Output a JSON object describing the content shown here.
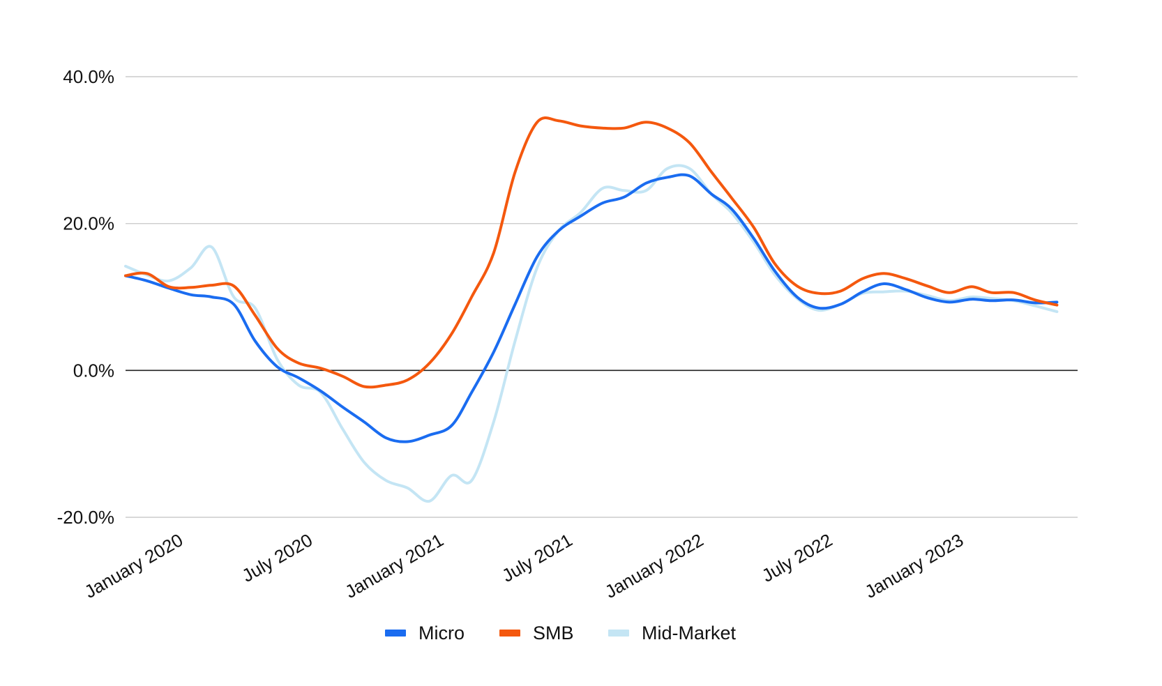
{
  "chart_data": {
    "type": "line",
    "title": "",
    "xlabel": "",
    "ylabel": "",
    "x_range": [
      "2019-11-01",
      "2023-06-30"
    ],
    "ylim": [
      -20,
      40
    ],
    "y_ticks": [
      {
        "value": -20,
        "label": "-20.0%"
      },
      {
        "value": 0,
        "label": "0.0%"
      },
      {
        "value": 20,
        "label": "20.0%"
      },
      {
        "value": 40,
        "label": "40.0%"
      }
    ],
    "x_ticks": [
      {
        "date": "2020-01-01",
        "label": "January 2020"
      },
      {
        "date": "2020-07-01",
        "label": "July 2020"
      },
      {
        "date": "2021-01-01",
        "label": "January 2021"
      },
      {
        "date": "2021-07-01",
        "label": "July 2021"
      },
      {
        "date": "2022-01-01",
        "label": "January 2022"
      },
      {
        "date": "2022-07-01",
        "label": "July 2022"
      },
      {
        "date": "2023-01-01",
        "label": "January 2023"
      }
    ],
    "grid": true,
    "legend_position": "bottom",
    "series": [
      {
        "name": "Micro",
        "color": "#1a6cf0",
        "points": [
          [
            "2019-11-01",
            12.9
          ],
          [
            "2019-12-01",
            12.2
          ],
          [
            "2020-01-01",
            11.2
          ],
          [
            "2020-02-01",
            10.3
          ],
          [
            "2020-03-01",
            10.0
          ],
          [
            "2020-04-01",
            9.0
          ],
          [
            "2020-05-01",
            4.0
          ],
          [
            "2020-06-01",
            0.5
          ],
          [
            "2020-07-01",
            -1.0
          ],
          [
            "2020-08-01",
            -2.8
          ],
          [
            "2020-09-01",
            -5.0
          ],
          [
            "2020-10-01",
            -7.0
          ],
          [
            "2020-11-01",
            -9.2
          ],
          [
            "2020-12-01",
            -9.7
          ],
          [
            "2021-01-01",
            -8.8
          ],
          [
            "2021-02-01",
            -7.5
          ],
          [
            "2021-03-01",
            -3.0
          ],
          [
            "2021-04-01",
            2.5
          ],
          [
            "2021-05-01",
            9.0
          ],
          [
            "2021-06-01",
            15.5
          ],
          [
            "2021-07-01",
            19.0
          ],
          [
            "2021-08-01",
            21.0
          ],
          [
            "2021-09-01",
            22.8
          ],
          [
            "2021-10-01",
            23.6
          ],
          [
            "2021-11-01",
            25.5
          ],
          [
            "2021-12-01",
            26.3
          ],
          [
            "2022-01-01",
            26.5
          ],
          [
            "2022-02-01",
            24.0
          ],
          [
            "2022-03-01",
            22.0
          ],
          [
            "2022-04-01",
            18.0
          ],
          [
            "2022-05-01",
            13.5
          ],
          [
            "2022-06-01",
            10.0
          ],
          [
            "2022-07-01",
            8.5
          ],
          [
            "2022-08-01",
            9.0
          ],
          [
            "2022-09-01",
            10.7
          ],
          [
            "2022-10-01",
            11.8
          ],
          [
            "2022-11-01",
            11.0
          ],
          [
            "2022-12-01",
            9.9
          ],
          [
            "2023-01-01",
            9.3
          ],
          [
            "2023-02-01",
            9.7
          ],
          [
            "2023-03-01",
            9.5
          ],
          [
            "2023-04-01",
            9.6
          ],
          [
            "2023-05-01",
            9.2
          ],
          [
            "2023-06-01",
            9.3
          ]
        ]
      },
      {
        "name": "SMB",
        "color": "#f4580e",
        "points": [
          [
            "2019-11-01",
            12.9
          ],
          [
            "2019-12-01",
            13.2
          ],
          [
            "2020-01-01",
            11.4
          ],
          [
            "2020-02-01",
            11.3
          ],
          [
            "2020-03-01",
            11.6
          ],
          [
            "2020-04-01",
            11.5
          ],
          [
            "2020-05-01",
            7.5
          ],
          [
            "2020-06-01",
            3.0
          ],
          [
            "2020-07-01",
            1.0
          ],
          [
            "2020-08-01",
            0.3
          ],
          [
            "2020-09-01",
            -0.8
          ],
          [
            "2020-10-01",
            -2.2
          ],
          [
            "2020-11-01",
            -2.0
          ],
          [
            "2020-12-01",
            -1.3
          ],
          [
            "2021-01-01",
            1.0
          ],
          [
            "2021-02-01",
            5.0
          ],
          [
            "2021-03-01",
            10.0
          ],
          [
            "2021-04-01",
            16.0
          ],
          [
            "2021-05-01",
            27.0
          ],
          [
            "2021-06-01",
            33.8
          ],
          [
            "2021-07-01",
            34.0
          ],
          [
            "2021-08-01",
            33.3
          ],
          [
            "2021-09-01",
            33.0
          ],
          [
            "2021-10-01",
            33.0
          ],
          [
            "2021-11-01",
            33.8
          ],
          [
            "2021-12-01",
            33.0
          ],
          [
            "2022-01-01",
            31.0
          ],
          [
            "2022-02-01",
            27.0
          ],
          [
            "2022-03-01",
            23.5
          ],
          [
            "2022-04-01",
            19.5
          ],
          [
            "2022-05-01",
            14.5
          ],
          [
            "2022-06-01",
            11.5
          ],
          [
            "2022-07-01",
            10.5
          ],
          [
            "2022-08-01",
            10.8
          ],
          [
            "2022-09-01",
            12.5
          ],
          [
            "2022-10-01",
            13.2
          ],
          [
            "2022-11-01",
            12.5
          ],
          [
            "2022-12-01",
            11.5
          ],
          [
            "2023-01-01",
            10.6
          ],
          [
            "2023-02-01",
            11.4
          ],
          [
            "2023-03-01",
            10.6
          ],
          [
            "2023-04-01",
            10.6
          ],
          [
            "2023-05-01",
            9.6
          ],
          [
            "2023-06-01",
            8.9
          ]
        ]
      },
      {
        "name": "Mid-Market",
        "color": "#c4e5f4",
        "points": [
          [
            "2019-11-01",
            14.2
          ],
          [
            "2019-12-01",
            13.0
          ],
          [
            "2020-01-01",
            12.2
          ],
          [
            "2020-02-01",
            14.0
          ],
          [
            "2020-03-01",
            16.8
          ],
          [
            "2020-04-01",
            10.0
          ],
          [
            "2020-05-01",
            8.5
          ],
          [
            "2020-06-01",
            1.5
          ],
          [
            "2020-07-01",
            -2.0
          ],
          [
            "2020-08-01",
            -3.0
          ],
          [
            "2020-09-01",
            -8.0
          ],
          [
            "2020-10-01",
            -12.5
          ],
          [
            "2020-11-01",
            -15.0
          ],
          [
            "2020-12-01",
            -16.0
          ],
          [
            "2021-01-01",
            -17.8
          ],
          [
            "2021-02-01",
            -14.3
          ],
          [
            "2021-03-01",
            -15.0
          ],
          [
            "2021-04-01",
            -7.0
          ],
          [
            "2021-05-01",
            4.0
          ],
          [
            "2021-06-01",
            14.0
          ],
          [
            "2021-07-01",
            19.0
          ],
          [
            "2021-08-01",
            21.5
          ],
          [
            "2021-09-01",
            24.8
          ],
          [
            "2021-10-01",
            24.5
          ],
          [
            "2021-11-01",
            24.5
          ],
          [
            "2021-12-01",
            27.5
          ],
          [
            "2022-01-01",
            27.5
          ],
          [
            "2022-02-01",
            24.0
          ],
          [
            "2022-03-01",
            21.5
          ],
          [
            "2022-04-01",
            17.5
          ],
          [
            "2022-05-01",
            13.0
          ],
          [
            "2022-06-01",
            9.8
          ],
          [
            "2022-07-01",
            8.2
          ],
          [
            "2022-08-01",
            9.0
          ],
          [
            "2022-09-01",
            10.5
          ],
          [
            "2022-10-01",
            10.7
          ],
          [
            "2022-11-01",
            10.8
          ],
          [
            "2022-12-01",
            10.2
          ],
          [
            "2023-01-01",
            9.5
          ],
          [
            "2023-02-01",
            10.0
          ],
          [
            "2023-03-01",
            9.8
          ],
          [
            "2023-04-01",
            9.5
          ],
          [
            "2023-05-01",
            8.8
          ],
          [
            "2023-06-01",
            8.0
          ]
        ]
      }
    ]
  }
}
